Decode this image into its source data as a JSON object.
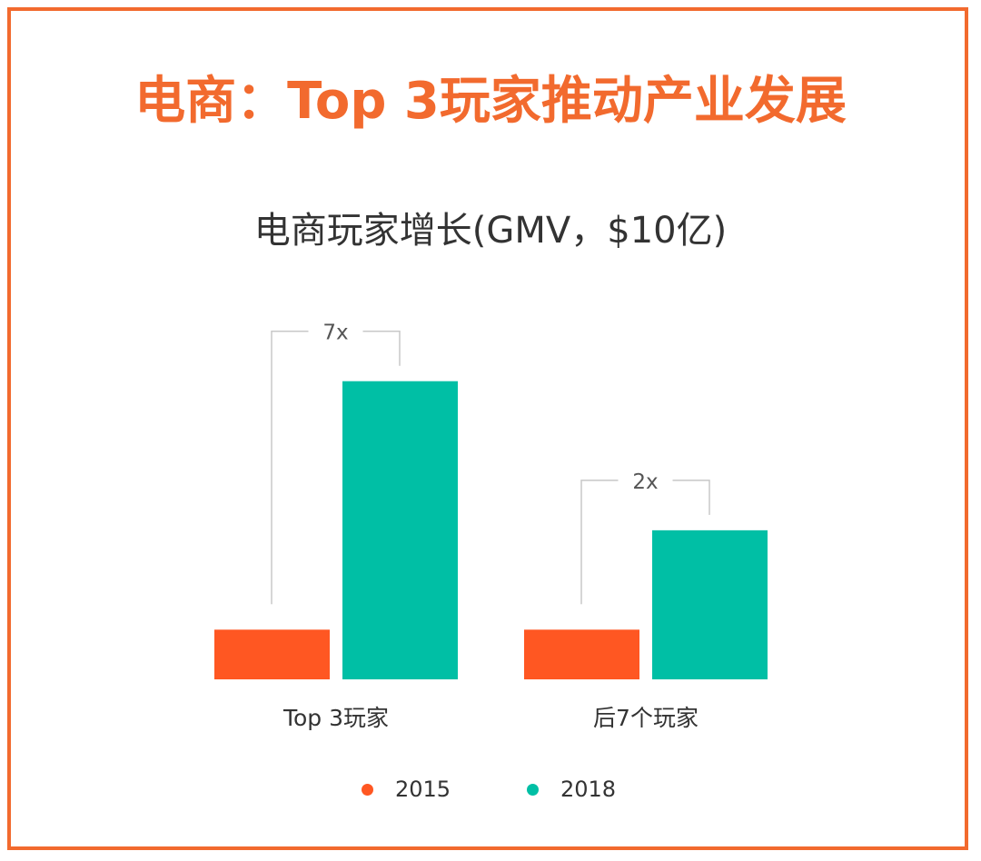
{
  "page": {
    "title": "电商：Top 3玩家推动产业发展",
    "frame_color": "#f26a2e"
  },
  "chart_data": {
    "type": "bar",
    "title": "电商玩家增长(GMV，$10亿)",
    "xlabel": "",
    "ylabel": "",
    "categories": [
      "Top 3玩家",
      "后7个玩家"
    ],
    "series": [
      {
        "name": "2015",
        "values": [
          1,
          1
        ],
        "color": "#ff5722"
      },
      {
        "name": "2018",
        "values": [
          6,
          3
        ],
        "color": "#00bfa5"
      }
    ],
    "ylim": [
      0,
      7
    ],
    "grid": false,
    "legend": "bottom-center",
    "annotations": [
      "7x",
      "2x"
    ]
  }
}
